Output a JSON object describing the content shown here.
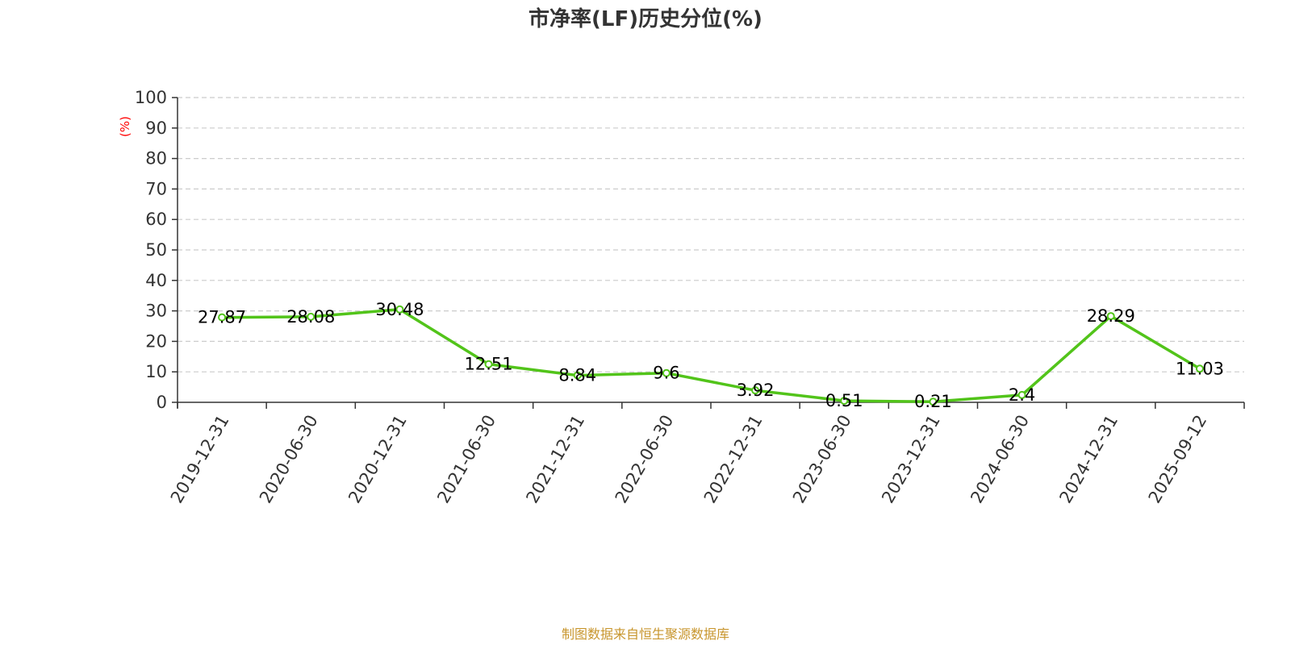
{
  "chart_data": {
    "type": "line",
    "title": "市净率(LF)历史分位(%)",
    "ylabel": "(%)",
    "xlabel": "",
    "categories": [
      "2019-12-31",
      "2020-06-30",
      "2020-12-31",
      "2021-06-30",
      "2021-12-31",
      "2022-06-30",
      "2022-12-31",
      "2023-06-30",
      "2023-12-31",
      "2024-06-30",
      "2024-12-31",
      "2025-09-12"
    ],
    "series": [
      {
        "values": [
          27.87,
          28.08,
          30.48,
          12.51,
          8.84,
          9.6,
          3.92,
          0.51,
          0.21,
          2.4,
          28.29,
          11.03
        ]
      }
    ],
    "data_labels": [
      "27.87",
      "28.08",
      "30.48",
      "12.51",
      "8.84",
      "9.6",
      "3.92",
      "0.51",
      "0.21",
      "2.4",
      "28.29",
      "11.03"
    ],
    "ylim": [
      0,
      100
    ],
    "yticks": [
      "0",
      "10",
      "20",
      "30",
      "40",
      "50",
      "60",
      "70",
      "80",
      "90",
      "100"
    ],
    "grid": true,
    "grid_style": "dashed",
    "legend": "none"
  },
  "footer": {
    "source": "制图数据来自恒生聚源数据库"
  },
  "colors": {
    "line": "#52c41a",
    "marker_fill": "#ffffff",
    "grid": "#cccccc",
    "axis": "#333333",
    "ylabel": "#ff0000",
    "source": "#c8962e"
  }
}
